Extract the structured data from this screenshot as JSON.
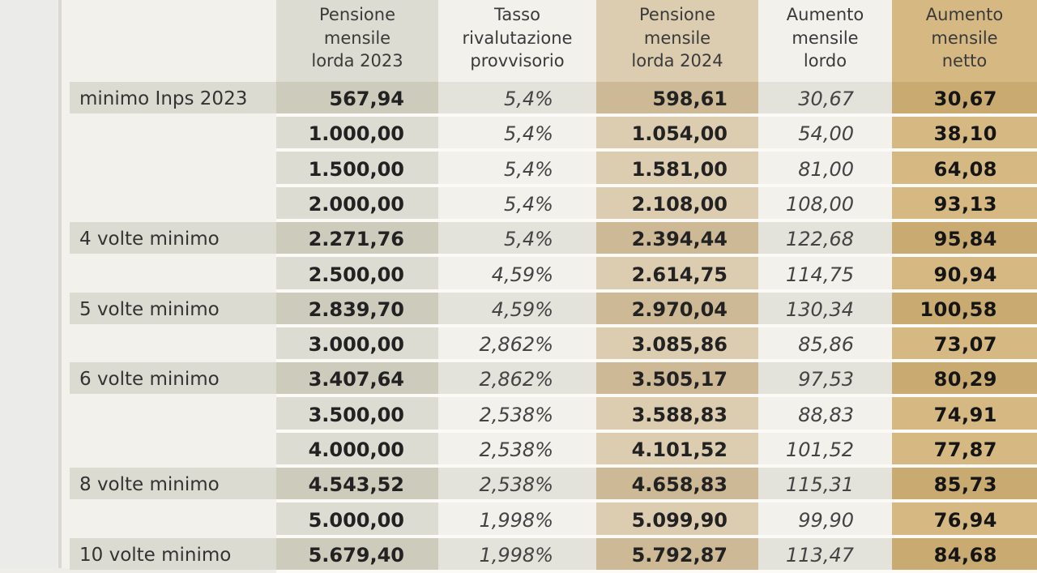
{
  "headers": {
    "col1": [
      "Pensione",
      "mensile",
      "lorda 2023"
    ],
    "col2": [
      "Tasso",
      "rivalutazione",
      "provvisorio"
    ],
    "col3": [
      "Pensione",
      "mensile",
      "lorda 2024"
    ],
    "col4": [
      "Aumento",
      "mensile",
      "lordo"
    ],
    "col5": [
      "Aumento",
      "mensile",
      "netto"
    ]
  },
  "rows": [
    {
      "label": "minimo Inps 2023",
      "lorda2023": "567,94",
      "tasso": "5,4%",
      "lorda2024": "598,61",
      "lordo": "30,67",
      "netto": "30,67"
    },
    {
      "label": "",
      "lorda2023": "1.000,00",
      "tasso": "5,4%",
      "lorda2024": "1.054,00",
      "lordo": "54,00",
      "netto": "38,10"
    },
    {
      "label": "",
      "lorda2023": "1.500,00",
      "tasso": "5,4%",
      "lorda2024": "1.581,00",
      "lordo": "81,00",
      "netto": "64,08"
    },
    {
      "label": "",
      "lorda2023": "2.000,00",
      "tasso": "5,4%",
      "lorda2024": "2.108,00",
      "lordo": "108,00",
      "netto": "93,13"
    },
    {
      "label": "4 volte minimo",
      "lorda2023": "2.271,76",
      "tasso": "5,4%",
      "lorda2024": "2.394,44",
      "lordo": "122,68",
      "netto": "95,84"
    },
    {
      "label": "",
      "lorda2023": "2.500,00",
      "tasso": "4,59%",
      "lorda2024": "2.614,75",
      "lordo": "114,75",
      "netto": "90,94"
    },
    {
      "label": "5 volte minimo",
      "lorda2023": "2.839,70",
      "tasso": "4,59%",
      "lorda2024": "2.970,04",
      "lordo": "130,34",
      "netto": "100,58"
    },
    {
      "label": "",
      "lorda2023": "3.000,00",
      "tasso": "2,862%",
      "lorda2024": "3.085,86",
      "lordo": "85,86",
      "netto": "73,07"
    },
    {
      "label": "6 volte minimo",
      "lorda2023": "3.407,64",
      "tasso": "2,862%",
      "lorda2024": "3.505,17",
      "lordo": "97,53",
      "netto": "80,29"
    },
    {
      "label": "",
      "lorda2023": "3.500,00",
      "tasso": "2,538%",
      "lorda2024": "3.588,83",
      "lordo": "88,83",
      "netto": "74,91"
    },
    {
      "label": "",
      "lorda2023": "4.000,00",
      "tasso": "2,538%",
      "lorda2024": "4.101,52",
      "lordo": "101,52",
      "netto": "77,87"
    },
    {
      "label": "8 volte minimo",
      "lorda2023": "4.543,52",
      "tasso": "2,538%",
      "lorda2024": "4.658,83",
      "lordo": "115,31",
      "netto": "85,73"
    },
    {
      "label": "",
      "lorda2023": "5.000,00",
      "tasso": "1,998%",
      "lorda2024": "5.099,90",
      "lordo": "99,90",
      "netto": "76,94"
    },
    {
      "label": "10 volte minimo",
      "lorda2023": "5.679,40",
      "tasso": "1,998%",
      "lorda2024": "5.792,87",
      "lordo": "113,47",
      "netto": "84,68"
    }
  ],
  "highlight_rows": [
    0,
    4,
    6,
    8,
    11,
    13
  ],
  "colors": {
    "col1_bg": "#dddcd2",
    "col1_hl": "#cdcbbc",
    "col3_bg": "#ddcdb0",
    "col3_hl": "#cdb996",
    "col5_bg": "#d6b982",
    "col5_hl": "#c9aa70",
    "label_hl": "#dcdbd2",
    "plain_hl": "#e4e3db"
  }
}
